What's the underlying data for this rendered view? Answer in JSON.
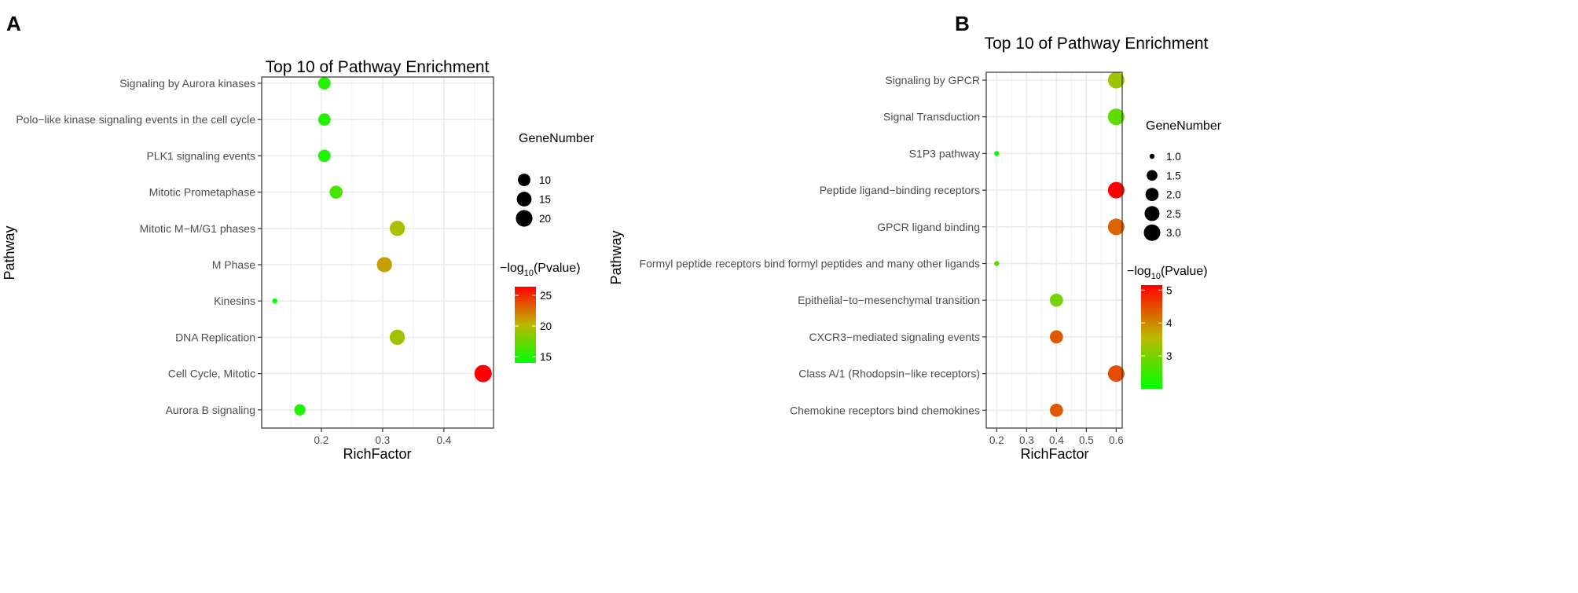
{
  "chart_data": [
    {
      "type": "scatter",
      "panel_label": "A",
      "title": "Top 10 of Pathway Enrichment",
      "xlabel": "RichFactor",
      "ylabel": "Pathway",
      "xlim": [
        0.1026,
        0.481
      ],
      "xticks": [
        0.2,
        0.3,
        0.4
      ],
      "xtick_labels": [
        "0.2",
        "0.3",
        "0.4"
      ],
      "grid": true,
      "categories": [
        "Signaling by Aurora kinases",
        "Polo−like kinase signaling events in the cell cycle",
        "PLK1 signaling events",
        "Mitotic Prometaphase",
        "Mitotic M−M/G1 phases",
        "M Phase",
        "Kinesins",
        "DNA Replication",
        "Cell Cycle, Mitotic",
        "Aurora B signaling"
      ],
      "rich_factor": [
        0.205,
        0.205,
        0.205,
        0.224,
        0.324,
        0.303,
        0.124,
        0.324,
        0.464,
        0.165
      ],
      "gene_number": [
        10,
        10,
        10,
        11,
        16,
        16,
        3,
        16,
        22,
        8
      ],
      "neg_log10_pvalue": [
        15.2,
        15.2,
        15.0,
        16.3,
        19.5,
        21.0,
        14.0,
        19.3,
        26.4,
        15.0
      ],
      "size_legend": {
        "title": "GeneNumber",
        "values": [
          10,
          15,
          20
        ],
        "labels": [
          "10",
          "15",
          "20"
        ]
      },
      "color_legend": {
        "title_prefix": "−log",
        "title_sub": "10",
        "title_suffix": "(Pvalue)",
        "range": [
          14.0,
          26.4
        ],
        "ticks": [
          15,
          20,
          25
        ],
        "tick_labels": [
          "15",
          "20",
          "25"
        ]
      },
      "colors": {
        "low": "#00ff00",
        "mid": "#bdb800",
        "high": "#ff0000"
      }
    },
    {
      "type": "scatter",
      "panel_label": "B",
      "title": "Top 10 of Pathway Enrichment",
      "xlabel": "RichFactor",
      "ylabel": "Pathway",
      "xlim": [
        0.165,
        0.62
      ],
      "xticks": [
        0.2,
        0.3,
        0.4,
        0.5,
        0.6
      ],
      "xtick_labels": [
        "0.2",
        "0.3",
        "0.4",
        "0.5",
        "0.6"
      ],
      "grid": true,
      "categories": [
        "Signaling by GPCR",
        "Signal Transduction",
        "S1P3 pathway",
        "Peptide ligand−binding receptors",
        "GPCR ligand binding",
        "Formyl peptide receptors bind formyl peptides and many other ligands",
        "Epithelial−to−mesenchymal transition",
        "CXCR3−mediated signaling events",
        "Class A/1 (Rhodopsin−like receptors)",
        "Chemokine receptors bind chemokines"
      ],
      "rich_factor": [
        0.6,
        0.6,
        0.2,
        0.6,
        0.6,
        0.2,
        0.4,
        0.4,
        0.6,
        0.4
      ],
      "gene_number": [
        3,
        3,
        1,
        3,
        3,
        1,
        2,
        2,
        3,
        2
      ],
      "neg_log10_pvalue": [
        3.3,
        2.8,
        2.1,
        5.15,
        4.3,
        2.7,
        3.0,
        4.4,
        4.5,
        4.4
      ],
      "size_legend": {
        "title": "GeneNumber",
        "values": [
          1.0,
          1.5,
          2.0,
          2.5,
          3.0
        ],
        "labels": [
          "1.0",
          "1.5",
          "2.0",
          "2.5",
          "3.0"
        ]
      },
      "color_legend": {
        "title_prefix": "−log",
        "title_sub": "10",
        "title_suffix": "(Pvalue)",
        "range": [
          2.0,
          5.15
        ],
        "ticks": [
          3,
          4,
          5
        ],
        "tick_labels": [
          "3",
          "4",
          "5"
        ]
      },
      "colors": {
        "low": "#00ff00",
        "mid": "#bdb800",
        "high": "#ff0000"
      }
    }
  ]
}
